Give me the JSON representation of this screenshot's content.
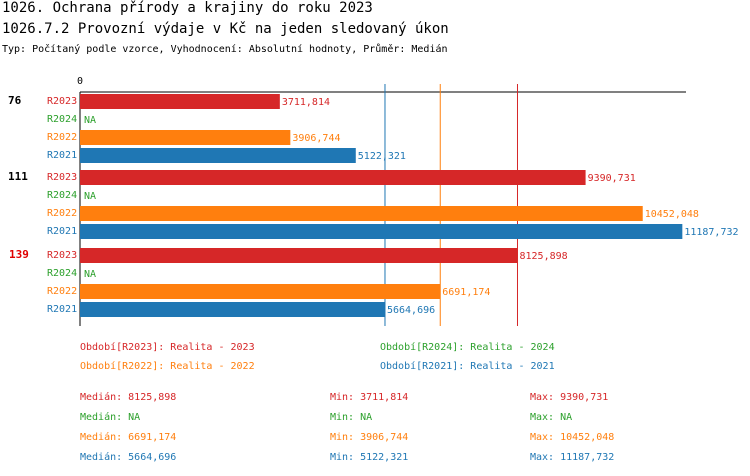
{
  "header": {
    "title": "1026. Ochrana přírody a krajiny do roku 2023",
    "subtitle": "1026.7.2 Provozní výdaje v Kč na jeden sledovaný úkon",
    "typ": "Typ: Počítaný podle vzorce, Vyhodnocení: Absolutní hodnoty, Průměr: Medián"
  },
  "colors": {
    "R2023": "#d62728",
    "R2024": "#2ca02c",
    "R2022": "#ff7f0e",
    "R2021": "#1f77b4"
  },
  "chart_data": {
    "type": "bar",
    "orientation": "horizontal",
    "axis_zero_label": "0",
    "xlim": [
      0,
      11200
    ],
    "series_order": [
      "R2023",
      "R2024",
      "R2022",
      "R2021"
    ],
    "groups": [
      {
        "id": "76",
        "highlight": false,
        "values": {
          "R2023": 3711.814,
          "R2024": null,
          "R2022": 3906.744,
          "R2021": 5122.321
        },
        "labels": {
          "R2023": "3711,814",
          "R2024": "NA",
          "R2022": "3906,744",
          "R2021": "5122,321"
        }
      },
      {
        "id": "111",
        "highlight": false,
        "values": {
          "R2023": 9390.731,
          "R2024": null,
          "R2022": 10452.048,
          "R2021": 11187.732
        },
        "labels": {
          "R2023": "9390,731",
          "R2024": "NA",
          "R2022": "10452,048",
          "R2021": "11187,732"
        }
      },
      {
        "id": "139",
        "highlight": true,
        "values": {
          "R2023": 8125.898,
          "R2024": null,
          "R2022": 6691.174,
          "R2021": 5664.696
        },
        "labels": {
          "R2023": "8125,898",
          "R2024": "NA",
          "R2022": "6691,174",
          "R2021": "5664,696"
        }
      }
    ],
    "median_lines": {
      "R2023": 8125.898,
      "R2022": 6691.174,
      "R2021": 5664.696
    }
  },
  "legend": {
    "r2023": "Období[R2023]: Realita - 2023",
    "r2024": "Období[R2024]: Realita - 2024",
    "r2022": "Období[R2022]: Realita - 2022",
    "r2021": "Období[R2021]: Realita - 2021"
  },
  "stats": {
    "r2023": {
      "median": "Medián: 8125,898",
      "min": "Min: 3711,814",
      "max": "Max: 9390,731"
    },
    "r2024": {
      "median": "Medián: NA",
      "min": "Min: NA",
      "max": "Max: NA"
    },
    "r2022": {
      "median": "Medián: 6691,174",
      "min": "Min: 3906,744",
      "max": "Max: 10452,048"
    },
    "r2021": {
      "median": "Medián: 5664,696",
      "min": "Min: 5122,321",
      "max": "Max: 11187,732"
    }
  }
}
